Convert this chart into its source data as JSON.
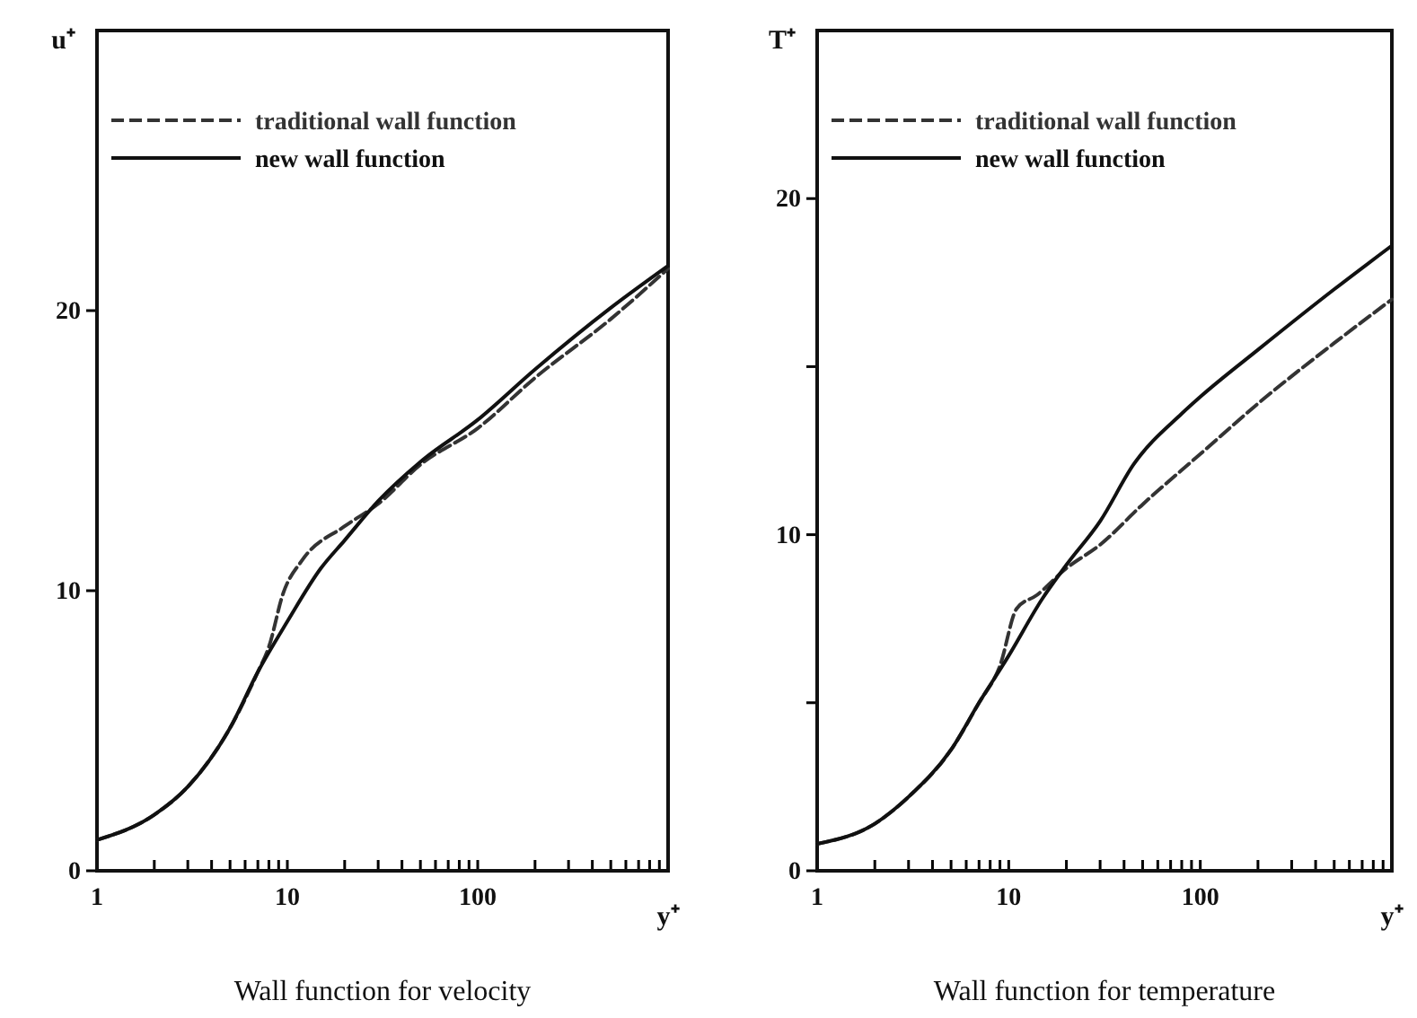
{
  "chart_data": [
    {
      "type": "line",
      "title": "Wall function for velocity",
      "xlabel": "y⁺",
      "ylabel": "u⁺",
      "log": "x",
      "legend": "top left",
      "xlim": [
        1,
        1000
      ],
      "ylim": [
        0,
        30
      ],
      "xticks": [
        1,
        {
          "value": 2,
          "label": null
        },
        {
          "value": 3,
          "label": null
        },
        {
          "value": 4,
          "label": null
        },
        {
          "value": 5,
          "label": null
        },
        {
          "value": 6,
          "label": null
        },
        {
          "value": 7,
          "label": null
        },
        {
          "value": 8,
          "label": null
        },
        {
          "value": 9,
          "label": null
        },
        10,
        {
          "value": 20,
          "label": null
        },
        {
          "value": 30,
          "label": null
        },
        {
          "value": 40,
          "label": null
        },
        {
          "value": 50,
          "label": null
        },
        {
          "value": 60,
          "label": null
        },
        {
          "value": 70,
          "label": null
        },
        {
          "value": 80,
          "label": null
        },
        {
          "value": 90,
          "label": null
        },
        100,
        {
          "value": 200,
          "label": null
        },
        {
          "value": 300,
          "label": null
        },
        {
          "value": 400,
          "label": null
        },
        {
          "value": 500,
          "label": null
        },
        {
          "value": 600,
          "label": null
        },
        {
          "value": 700,
          "label": null
        },
        {
          "value": 800,
          "label": null
        },
        {
          "value": 900,
          "label": null
        },
        {
          "value": 1000,
          "label": null
        }
      ],
      "yticks": [
        0,
        10,
        20
      ],
      "series": [
        {
          "name": "traditional wall function",
          "color": "#333333",
          "line_style": "dashed",
          "x": [
            1,
            2,
            3,
            5,
            7,
            8,
            9.5,
            12,
            20,
            30,
            50,
            100,
            200,
            500,
            1000
          ],
          "values": [
            1.1,
            2.0,
            3.0,
            5.1,
            7.1,
            8.0,
            9.9,
            11.1,
            12.3,
            13.1,
            14.5,
            15.8,
            17.6,
            19.7,
            21.5
          ]
        },
        {
          "name": "new wall function",
          "color": "#111111",
          "line_style": "solid",
          "x": [
            1,
            2,
            3,
            5,
            7,
            10,
            15,
            20,
            30,
            50,
            100,
            200,
            500,
            1000
          ],
          "values": [
            1.1,
            2.0,
            3.0,
            5.1,
            7.1,
            8.9,
            10.8,
            11.8,
            13.2,
            14.6,
            16.1,
            17.9,
            20.1,
            21.6
          ]
        }
      ]
    },
    {
      "type": "line",
      "title": "Wall function for temperature",
      "xlabel": "y⁺",
      "ylabel": "T⁺",
      "log": "x",
      "legend": "top left",
      "xlim": [
        1,
        1000
      ],
      "ylim": [
        0,
        25
      ],
      "xticks": [
        1,
        {
          "value": 2,
          "label": null
        },
        {
          "value": 3,
          "label": null
        },
        {
          "value": 4,
          "label": null
        },
        {
          "value": 5,
          "label": null
        },
        {
          "value": 6,
          "label": null
        },
        {
          "value": 7,
          "label": null
        },
        {
          "value": 8,
          "label": null
        },
        {
          "value": 9,
          "label": null
        },
        10,
        {
          "value": 20,
          "label": null
        },
        {
          "value": 30,
          "label": null
        },
        {
          "value": 40,
          "label": null
        },
        {
          "value": 50,
          "label": null
        },
        {
          "value": 60,
          "label": null
        },
        {
          "value": 70,
          "label": null
        },
        {
          "value": 80,
          "label": null
        },
        {
          "value": 90,
          "label": null
        },
        100,
        {
          "value": 200,
          "label": null
        },
        {
          "value": 300,
          "label": null
        },
        {
          "value": 400,
          "label": null
        },
        {
          "value": 500,
          "label": null
        },
        {
          "value": 600,
          "label": null
        },
        {
          "value": 700,
          "label": null
        },
        {
          "value": 800,
          "label": null
        },
        {
          "value": 900,
          "label": null
        },
        {
          "value": 1000,
          "label": null
        }
      ],
      "yticks": [
        0,
        {
          "value": 5,
          "label": null
        },
        10,
        {
          "value": 15,
          "label": null
        },
        20
      ],
      "series": [
        {
          "name": "traditional wall function",
          "color": "#333333",
          "line_style": "dashed",
          "x": [
            1,
            2,
            3,
            5,
            7,
            9,
            11,
            14,
            20,
            30,
            50,
            100,
            200,
            500,
            1000
          ],
          "values": [
            0.8,
            1.4,
            2.2,
            3.6,
            5.0,
            6.1,
            7.8,
            8.2,
            9.0,
            9.7,
            10.9,
            12.4,
            13.9,
            15.7,
            17.0
          ]
        },
        {
          "name": "new wall function",
          "color": "#111111",
          "line_style": "solid",
          "x": [
            1,
            2,
            3,
            5,
            7,
            10,
            15,
            20,
            30,
            45,
            80,
            100,
            200,
            500,
            1000
          ],
          "values": [
            0.8,
            1.4,
            2.2,
            3.6,
            5.0,
            6.4,
            8.1,
            9.1,
            10.4,
            12.1,
            13.6,
            14.1,
            15.5,
            17.3,
            18.6
          ]
        }
      ]
    }
  ]
}
